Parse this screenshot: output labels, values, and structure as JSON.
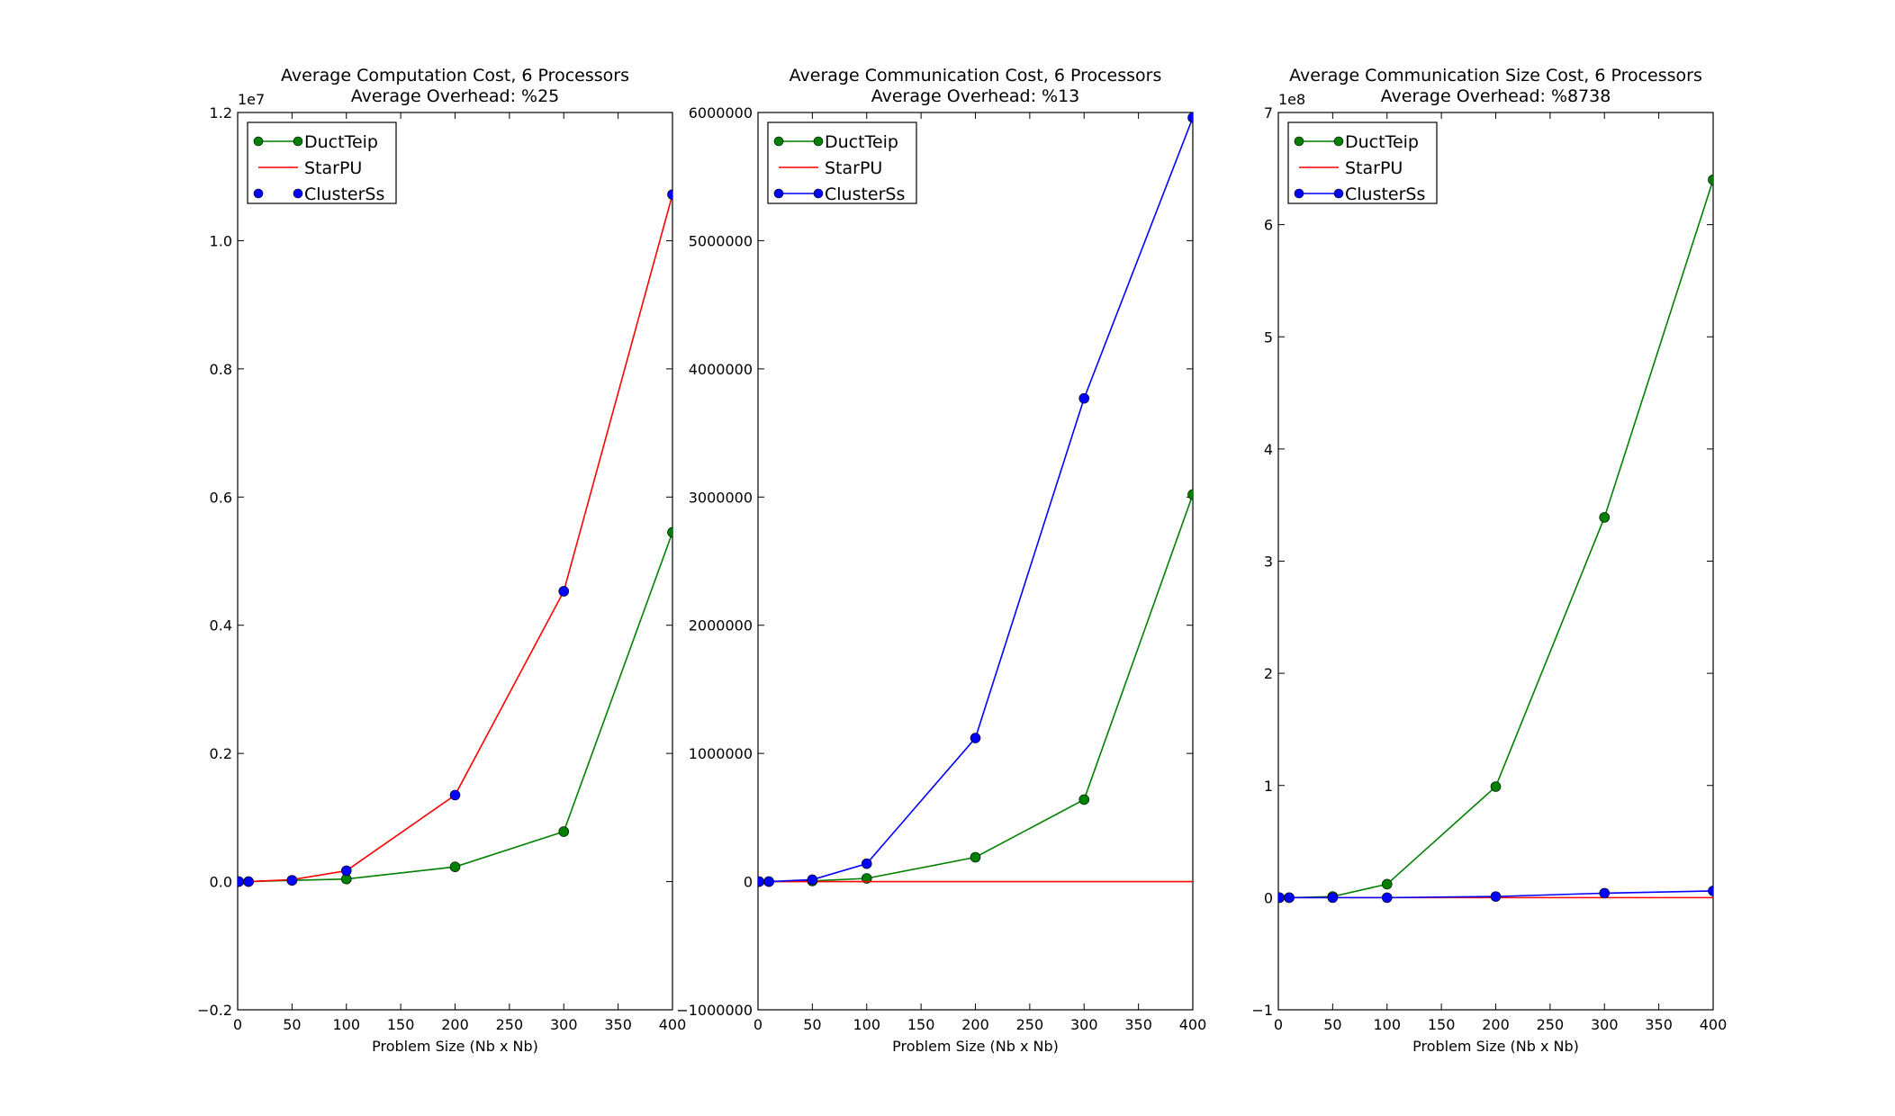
{
  "chart_data": [
    {
      "type": "line",
      "title": "Average Computation Cost, 6 Processors",
      "subtitle": "Average Overhead: %25",
      "xlabel": "Problem Size (Nb x Nb)",
      "ylabel": "",
      "xlim": [
        0,
        400
      ],
      "ylim": [
        -0.2,
        1.2
      ],
      "y_multiplier": "1e7",
      "xticks": [
        0,
        50,
        100,
        150,
        200,
        250,
        300,
        350,
        400
      ],
      "yticks": [
        -0.2,
        0.0,
        0.2,
        0.4,
        0.6,
        0.8,
        1.0,
        1.2
      ],
      "ytick_labels": [
        "−0.2",
        "0.0",
        "0.2",
        "0.4",
        "0.6",
        "0.8",
        "1.0",
        "1.2"
      ],
      "grid": false,
      "legend_position": "top-left",
      "series": [
        {
          "name": "DuctTeip",
          "color": "#008000",
          "style": "line-marker",
          "x": [
            1,
            10,
            50,
            100,
            200,
            300,
            400
          ],
          "y": [
            0.0,
            0.0,
            0.002,
            0.004,
            0.023,
            0.078,
            0.545
          ]
        },
        {
          "name": "StarPU",
          "color": "#ff0000",
          "style": "line",
          "x": [
            1,
            10,
            50,
            100,
            200,
            300,
            400
          ],
          "y": [
            0.0,
            0.0,
            0.003,
            0.017,
            0.135,
            0.453,
            1.072
          ]
        },
        {
          "name": "ClusterSs",
          "color": "#0000ff",
          "style": "marker",
          "x": [
            1,
            10,
            50,
            100,
            200,
            300,
            400
          ],
          "y": [
            0.0,
            0.0,
            0.002,
            0.017,
            0.135,
            0.453,
            1.072
          ]
        }
      ]
    },
    {
      "type": "line",
      "title": "Average Communication Cost, 6 Processors",
      "subtitle": "Average Overhead: %13",
      "xlabel": "Problem Size (Nb x Nb)",
      "ylabel": "",
      "xlim": [
        0,
        400
      ],
      "ylim": [
        -1000000,
        6000000
      ],
      "y_multiplier": "",
      "xticks": [
        0,
        50,
        100,
        150,
        200,
        250,
        300,
        350,
        400
      ],
      "yticks": [
        -1000000,
        0,
        1000000,
        2000000,
        3000000,
        4000000,
        5000000,
        6000000
      ],
      "ytick_labels": [
        "−1000000",
        "0",
        "1000000",
        "2000000",
        "3000000",
        "4000000",
        "5000000",
        "6000000"
      ],
      "grid": false,
      "legend_position": "top-left",
      "series": [
        {
          "name": "DuctTeip",
          "color": "#008000",
          "style": "line-marker",
          "x": [
            1,
            10,
            50,
            100,
            200,
            300,
            400
          ],
          "y": [
            0,
            0,
            5000,
            25000,
            190000,
            640000,
            3020000
          ]
        },
        {
          "name": "StarPU",
          "color": "#ff0000",
          "style": "line",
          "x": [
            1,
            10,
            50,
            100,
            200,
            300,
            400
          ],
          "y": [
            0,
            0,
            0,
            0,
            0,
            0,
            0
          ]
        },
        {
          "name": "ClusterSs",
          "color": "#0000ff",
          "style": "line-marker",
          "x": [
            1,
            10,
            50,
            100,
            200,
            300,
            400
          ],
          "y": [
            0,
            0,
            15000,
            140000,
            1120000,
            3770000,
            5960000
          ]
        }
      ]
    },
    {
      "type": "line",
      "title": "Average Communication Size Cost, 6 Processors",
      "subtitle": "Average Overhead: %8738",
      "xlabel": "Problem Size (Nb x Nb)",
      "ylabel": "",
      "xlim": [
        0,
        400
      ],
      "ylim": [
        -1,
        7
      ],
      "y_multiplier": "1e8",
      "xticks": [
        0,
        50,
        100,
        150,
        200,
        250,
        300,
        350,
        400
      ],
      "yticks": [
        -1,
        0,
        1,
        2,
        3,
        4,
        5,
        6,
        7
      ],
      "ytick_labels": [
        "−1",
        "0",
        "1",
        "2",
        "3",
        "4",
        "5",
        "6",
        "7"
      ],
      "grid": false,
      "legend_position": "top-left",
      "series": [
        {
          "name": "DuctTeip",
          "color": "#008000",
          "style": "line-marker",
          "x": [
            1,
            10,
            50,
            100,
            200,
            300,
            400
          ],
          "y": [
            0.0,
            0.0,
            0.01,
            0.12,
            0.99,
            3.39,
            6.4
          ]
        },
        {
          "name": "StarPU",
          "color": "#ff0000",
          "style": "line",
          "x": [
            1,
            10,
            50,
            100,
            200,
            300,
            400
          ],
          "y": [
            0.0,
            0.0,
            0.0,
            0.0,
            0.0,
            0.0,
            0.0
          ]
        },
        {
          "name": "ClusterSs",
          "color": "#0000ff",
          "style": "line-marker",
          "x": [
            1,
            10,
            50,
            100,
            200,
            300,
            400
          ],
          "y": [
            0.0,
            0.0,
            0.0,
            0.0,
            0.01,
            0.04,
            0.06
          ]
        }
      ]
    }
  ]
}
